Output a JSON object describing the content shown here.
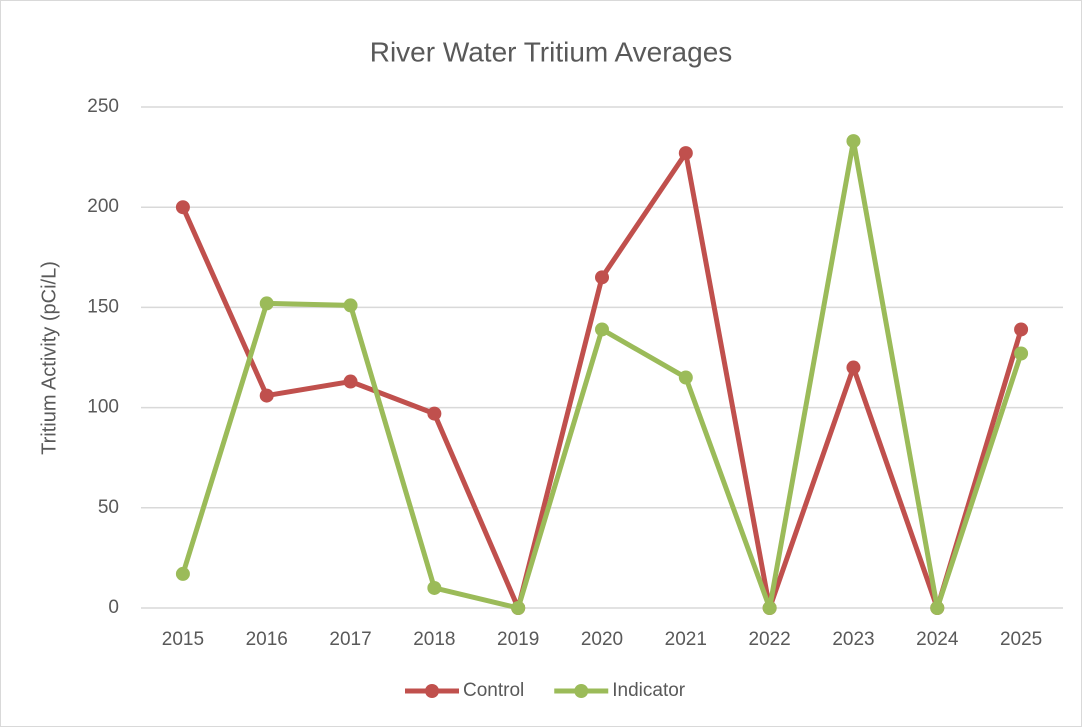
{
  "chart_data": {
    "type": "line",
    "title": "River Water Tritium Averages",
    "y_label": "Tritium  Activity (pCi/L)",
    "categories": [
      "2015",
      "2016",
      "2017",
      "2018",
      "2019",
      "2020",
      "2021",
      "2022",
      "2023",
      "2024",
      "2025"
    ],
    "series": [
      {
        "name": "Control",
        "color": "#c0504d",
        "values": [
          200,
          106,
          113,
          97,
          0,
          165,
          227,
          0,
          120,
          0,
          139
        ]
      },
      {
        "name": "Indicator",
        "color": "#9bbb59",
        "values": [
          17,
          152,
          151,
          10,
          0,
          139,
          115,
          0,
          233,
          0,
          127
        ]
      }
    ],
    "ylim": [
      0,
      250
    ],
    "yticks": [
      0,
      50,
      100,
      150,
      200,
      250
    ],
    "grid": true,
    "legend": "bottom"
  }
}
